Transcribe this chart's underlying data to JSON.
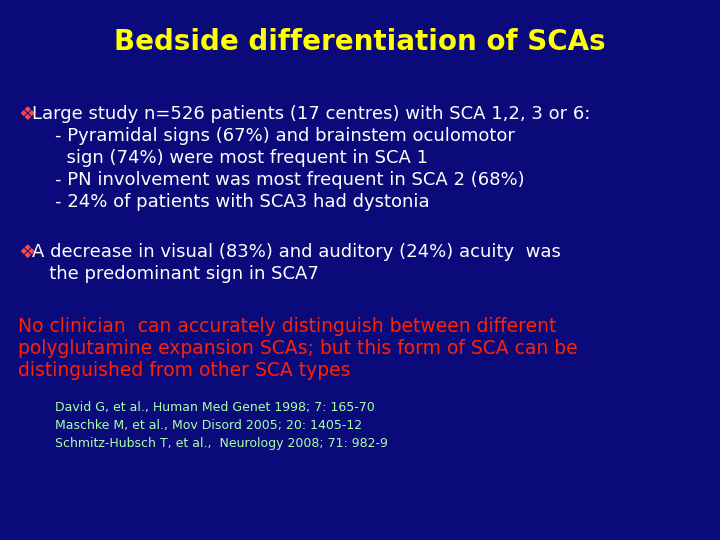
{
  "background_color": "#0A0A7A",
  "title": "Bedside differentiation of SCAs",
  "title_color": "#FFFF00",
  "title_fontsize": 20,
  "bullet1_symbol": "❖",
  "bullet1_symbol_color": "#FF4444",
  "bullet1_text": "Large study n=526 patients (17 centres) with SCA 1,2, 3 or 6:",
  "bullet1_sub": [
    "    - Pyramidal signs (67%) and brainstem oculomotor",
    "      sign (74%) were most frequent in SCA 1",
    "    - PN involvement was most frequent in SCA 2 (68%)",
    "    - 24% of patients with SCA3 had dystonia"
  ],
  "bullet1_color": "#FFFFFF",
  "bullet2_symbol": "❖",
  "bullet2_symbol_color": "#FF4444",
  "bullet2_text": "A decrease in visual (83%) and auditory (24%) acuity  was",
  "bullet2_text2": "   the predominant sign in SCA7",
  "bullet2_color": "#FFFFFF",
  "highlight_text": [
    "No clinician  can accurately distinguish between different",
    "polyglutamine expansion SCAs; but this form of SCA can be",
    "distinguished from other SCA types"
  ],
  "highlight_color": "#FF2200",
  "refs": [
    "David G, et al., Human Med Genet 1998; 7: 165-70",
    "Maschke M, et al., Mov Disord 2005; 20: 1405-12",
    "Schmitz-Hubsch T, et al.,  Neurology 2008; 71: 982-9"
  ],
  "refs_color": "#AAFFAA",
  "ref_fontsize": 9,
  "body_fontsize": 13,
  "highlight_fontsize": 13.5
}
